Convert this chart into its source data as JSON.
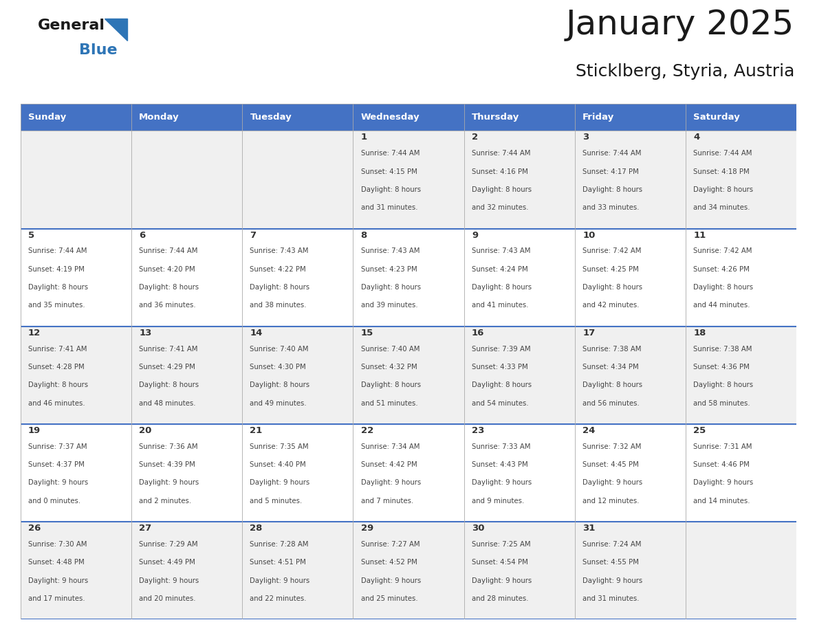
{
  "title": "January 2025",
  "subtitle": "Sticklberg, Styria, Austria",
  "days_of_week": [
    "Sunday",
    "Monday",
    "Tuesday",
    "Wednesday",
    "Thursday",
    "Friday",
    "Saturday"
  ],
  "header_bg": "#4472C4",
  "header_text_color": "#FFFFFF",
  "row_bg_odd": "#F0F0F0",
  "row_bg_even": "#FFFFFF",
  "cell_border_color": "#AAAAAA",
  "separator_color": "#4472C4",
  "day_num_color": "#333333",
  "info_text_color": "#444444",
  "title_color": "#1A1A1A",
  "subtitle_color": "#1A1A1A",
  "logo_general_color": "#1A1A1A",
  "logo_blue_color": "#2E75B6",
  "calendar": [
    [
      null,
      null,
      null,
      {
        "day": 1,
        "sunrise": "7:44 AM",
        "sunset": "4:15 PM",
        "dl1": "8 hours",
        "dl2": "and 31 minutes."
      },
      {
        "day": 2,
        "sunrise": "7:44 AM",
        "sunset": "4:16 PM",
        "dl1": "8 hours",
        "dl2": "and 32 minutes."
      },
      {
        "day": 3,
        "sunrise": "7:44 AM",
        "sunset": "4:17 PM",
        "dl1": "8 hours",
        "dl2": "and 33 minutes."
      },
      {
        "day": 4,
        "sunrise": "7:44 AM",
        "sunset": "4:18 PM",
        "dl1": "8 hours",
        "dl2": "and 34 minutes."
      }
    ],
    [
      {
        "day": 5,
        "sunrise": "7:44 AM",
        "sunset": "4:19 PM",
        "dl1": "8 hours",
        "dl2": "and 35 minutes."
      },
      {
        "day": 6,
        "sunrise": "7:44 AM",
        "sunset": "4:20 PM",
        "dl1": "8 hours",
        "dl2": "and 36 minutes."
      },
      {
        "day": 7,
        "sunrise": "7:43 AM",
        "sunset": "4:22 PM",
        "dl1": "8 hours",
        "dl2": "and 38 minutes."
      },
      {
        "day": 8,
        "sunrise": "7:43 AM",
        "sunset": "4:23 PM",
        "dl1": "8 hours",
        "dl2": "and 39 minutes."
      },
      {
        "day": 9,
        "sunrise": "7:43 AM",
        "sunset": "4:24 PM",
        "dl1": "8 hours",
        "dl2": "and 41 minutes."
      },
      {
        "day": 10,
        "sunrise": "7:42 AM",
        "sunset": "4:25 PM",
        "dl1": "8 hours",
        "dl2": "and 42 minutes."
      },
      {
        "day": 11,
        "sunrise": "7:42 AM",
        "sunset": "4:26 PM",
        "dl1": "8 hours",
        "dl2": "and 44 minutes."
      }
    ],
    [
      {
        "day": 12,
        "sunrise": "7:41 AM",
        "sunset": "4:28 PM",
        "dl1": "8 hours",
        "dl2": "and 46 minutes."
      },
      {
        "day": 13,
        "sunrise": "7:41 AM",
        "sunset": "4:29 PM",
        "dl1": "8 hours",
        "dl2": "and 48 minutes."
      },
      {
        "day": 14,
        "sunrise": "7:40 AM",
        "sunset": "4:30 PM",
        "dl1": "8 hours",
        "dl2": "and 49 minutes."
      },
      {
        "day": 15,
        "sunrise": "7:40 AM",
        "sunset": "4:32 PM",
        "dl1": "8 hours",
        "dl2": "and 51 minutes."
      },
      {
        "day": 16,
        "sunrise": "7:39 AM",
        "sunset": "4:33 PM",
        "dl1": "8 hours",
        "dl2": "and 54 minutes."
      },
      {
        "day": 17,
        "sunrise": "7:38 AM",
        "sunset": "4:34 PM",
        "dl1": "8 hours",
        "dl2": "and 56 minutes."
      },
      {
        "day": 18,
        "sunrise": "7:38 AM",
        "sunset": "4:36 PM",
        "dl1": "8 hours",
        "dl2": "and 58 minutes."
      }
    ],
    [
      {
        "day": 19,
        "sunrise": "7:37 AM",
        "sunset": "4:37 PM",
        "dl1": "9 hours",
        "dl2": "and 0 minutes."
      },
      {
        "day": 20,
        "sunrise": "7:36 AM",
        "sunset": "4:39 PM",
        "dl1": "9 hours",
        "dl2": "and 2 minutes."
      },
      {
        "day": 21,
        "sunrise": "7:35 AM",
        "sunset": "4:40 PM",
        "dl1": "9 hours",
        "dl2": "and 5 minutes."
      },
      {
        "day": 22,
        "sunrise": "7:34 AM",
        "sunset": "4:42 PM",
        "dl1": "9 hours",
        "dl2": "and 7 minutes."
      },
      {
        "day": 23,
        "sunrise": "7:33 AM",
        "sunset": "4:43 PM",
        "dl1": "9 hours",
        "dl2": "and 9 minutes."
      },
      {
        "day": 24,
        "sunrise": "7:32 AM",
        "sunset": "4:45 PM",
        "dl1": "9 hours",
        "dl2": "and 12 minutes."
      },
      {
        "day": 25,
        "sunrise": "7:31 AM",
        "sunset": "4:46 PM",
        "dl1": "9 hours",
        "dl2": "and 14 minutes."
      }
    ],
    [
      {
        "day": 26,
        "sunrise": "7:30 AM",
        "sunset": "4:48 PM",
        "dl1": "9 hours",
        "dl2": "and 17 minutes."
      },
      {
        "day": 27,
        "sunrise": "7:29 AM",
        "sunset": "4:49 PM",
        "dl1": "9 hours",
        "dl2": "and 20 minutes."
      },
      {
        "day": 28,
        "sunrise": "7:28 AM",
        "sunset": "4:51 PM",
        "dl1": "9 hours",
        "dl2": "and 22 minutes."
      },
      {
        "day": 29,
        "sunrise": "7:27 AM",
        "sunset": "4:52 PM",
        "dl1": "9 hours",
        "dl2": "and 25 minutes."
      },
      {
        "day": 30,
        "sunrise": "7:25 AM",
        "sunset": "4:54 PM",
        "dl1": "9 hours",
        "dl2": "and 28 minutes."
      },
      {
        "day": 31,
        "sunrise": "7:24 AM",
        "sunset": "4:55 PM",
        "dl1": "9 hours",
        "dl2": "and 31 minutes."
      },
      null
    ]
  ]
}
